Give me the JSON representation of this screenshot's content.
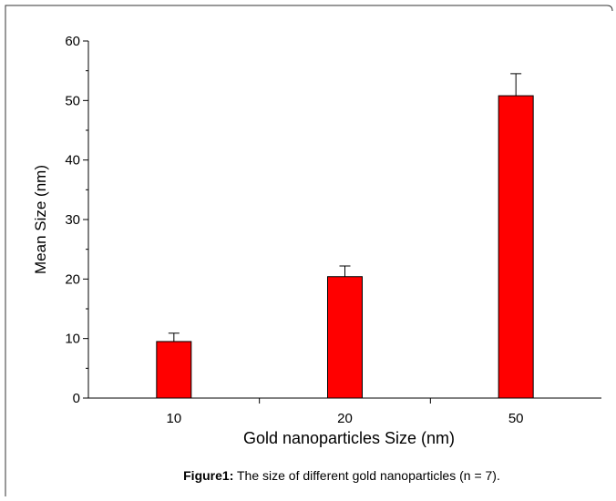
{
  "chart_data": {
    "type": "bar",
    "categories": [
      "10",
      "20",
      "50"
    ],
    "values": [
      9.5,
      20.4,
      50.8
    ],
    "errors": [
      1.4,
      1.8,
      3.7
    ],
    "color": "#ff0000",
    "ylim": [
      0,
      60
    ],
    "yticks": [
      0,
      10,
      20,
      30,
      40,
      50,
      60
    ],
    "minor_yticks": [
      5,
      15,
      25,
      35,
      45,
      55
    ],
    "y_label": "Mean Size (nm)",
    "x_label": "Gold nanoparticles Size (nm)",
    "caption_label": "Figure1:",
    "caption_text": "The size of different gold nanoparticles (n = 7)."
  }
}
